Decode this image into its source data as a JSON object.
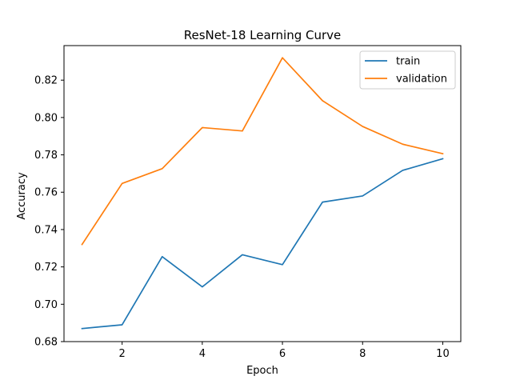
{
  "chart_data": {
    "type": "line",
    "title": "ResNet-18 Learning Curve",
    "xlabel": "Epoch",
    "ylabel": "Accuracy",
    "x": [
      1,
      2,
      3,
      4,
      5,
      6,
      7,
      8,
      9,
      10
    ],
    "xlim": [
      0.55,
      10.45
    ],
    "ylim": [
      0.68,
      0.8385
    ],
    "x_ticks": [
      2,
      4,
      6,
      8,
      10
    ],
    "y_ticks": [
      0.68,
      0.7,
      0.72,
      0.74,
      0.76,
      0.78,
      0.8,
      0.82
    ],
    "y_tick_labels": [
      "0.68",
      "0.70",
      "0.72",
      "0.74",
      "0.76",
      "0.78",
      "0.80",
      "0.82"
    ],
    "x_tick_labels": [
      "2",
      "4",
      "6",
      "8",
      "10"
    ],
    "grid": false,
    "legend_position": "top-right",
    "series": [
      {
        "name": "train",
        "color": "#1f77b4",
        "values": [
          0.687,
          0.689,
          0.7255,
          0.7093,
          0.7265,
          0.7212,
          0.7547,
          0.758,
          0.7717,
          0.7779
        ]
      },
      {
        "name": "validation",
        "color": "#ff7f0e",
        "values": [
          0.732,
          0.7647,
          0.7726,
          0.7946,
          0.7928,
          0.832,
          0.809,
          0.7952,
          0.7857,
          0.7806
        ]
      }
    ]
  }
}
